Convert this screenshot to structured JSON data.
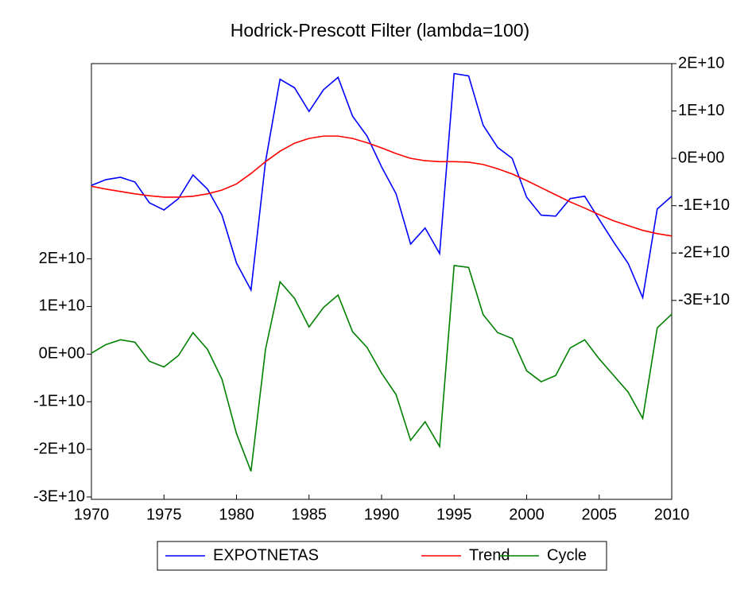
{
  "chart_data": {
    "type": "line",
    "title": "Hodrick-Prescott Filter (lambda=100)",
    "x": [
      1970,
      1971,
      1972,
      1973,
      1974,
      1975,
      1976,
      1977,
      1978,
      1979,
      1980,
      1981,
      1982,
      1983,
      1984,
      1985,
      1986,
      1987,
      1988,
      1989,
      1990,
      1991,
      1992,
      1993,
      1994,
      1995,
      1996,
      1997,
      1998,
      1999,
      2000,
      2001,
      2002,
      2003,
      2004,
      2005,
      2006,
      2007,
      2008,
      2009,
      2010
    ],
    "xlim": [
      1970,
      2010
    ],
    "xticks": [
      1970,
      1975,
      1980,
      1985,
      1990,
      1995,
      2000,
      2005,
      2010
    ],
    "ylim": [
      -30500000000,
      61000000000
    ],
    "yticks": [
      {
        "value": -30000000000,
        "label": "-3E+10"
      },
      {
        "value": -20000000000,
        "label": "-2E+10"
      },
      {
        "value": -10000000000,
        "label": "-1E+10"
      },
      {
        "value": 0,
        "label": "0E+00"
      },
      {
        "value": 10000000000,
        "label": "1E+10"
      },
      {
        "value": 20000000000,
        "label": "2E+10"
      }
    ],
    "y2lim": [
      -72000000000,
      20000000000
    ],
    "y2ticks": [
      {
        "value": -30000000000,
        "label": "-3E+10"
      },
      {
        "value": -20000000000,
        "label": "-2E+10"
      },
      {
        "value": -10000000000,
        "label": "-1E+10"
      },
      {
        "value": 0,
        "label": "0E+00"
      },
      {
        "value": 10000000000,
        "label": "1E+10"
      },
      {
        "value": 20000000000,
        "label": "2E+10"
      }
    ],
    "legend": "bottom",
    "series": [
      {
        "name": "EXPOTNETAS",
        "color": "#0000ff",
        "axis": "y2",
        "values": [
          -5700000000.0,
          -4500000000.0,
          -4000000000.0,
          -5000000000.0,
          -9400000000.0,
          -10900000000.0,
          -8500000000.0,
          -3500000000.0,
          -6500000000.0,
          -12000000000.0,
          -22100000000.0,
          -27800000000.0,
          -700000000.0,
          16700000000.0,
          14900000000.0,
          9900000000.0,
          14500000000.0,
          17100000000.0,
          8900000000.0,
          4700000000.0,
          -1800000000.0,
          -7500000000.0,
          -18100000000.0,
          -14700000000.0,
          -20100000000.0,
          17900000000.0,
          17400000000.0,
          7000000000.0,
          2300000000.0,
          0,
          -8200000000.0,
          -12000000000.0,
          -12200000000.0,
          -8500000000.0,
          -8000000000.0,
          -12900000000.0,
          -17700000000.0,
          -22200000000.0,
          -29400000000.0,
          -10700000000.0,
          -8000000000.0
        ]
      },
      {
        "name": "Trend",
        "color": "#ff0000",
        "axis": "y2",
        "values": [
          -5900000000.0,
          -6500000000.0,
          -7000000000.0,
          -7500000000.0,
          -7900000000.0,
          -8200000000.0,
          -8200000000.0,
          -8000000000.0,
          -7500000000.0,
          -6700000000.0,
          -5400000000.0,
          -3200000000.0,
          -700000000.0,
          1500000000.0,
          3200000000.0,
          4200000000.0,
          4700000000.0,
          4700000000.0,
          4200000000.0,
          3300000000.0,
          2200000000.0,
          1000000000.0,
          0,
          -500000000.0,
          -700000000.0,
          -700000000.0,
          -800000000.0,
          -1300000000.0,
          -2200000000.0,
          -3300000000.0,
          -4700000000.0,
          -6200000000.0,
          -7700000000.0,
          -9200000000.0,
          -10500000000.0,
          -11900000000.0,
          -13200000000.0,
          -14200000000.0,
          -15200000000.0,
          -15900000000.0,
          -16400000000.0
        ]
      },
      {
        "name": "Cycle",
        "color": "#008000",
        "axis": "y",
        "values": [
          200000000.0,
          2000000000.0,
          3000000000.0,
          2500000000.0,
          -1500000000.0,
          -2700000000.0,
          -300000000.0,
          4500000000.0,
          1000000000.0,
          -5300000000.0,
          -16700000000.0,
          -24600000000.0,
          1000000000.0,
          15200000000.0,
          11700000000.0,
          5700000000.0,
          9800000000.0,
          12400000000.0,
          4700000000.0,
          1400000000.0,
          -4000000000.0,
          -8500000000.0,
          -18100000000.0,
          -14200000000.0,
          -19400000000.0,
          18600000000.0,
          18200000000.0,
          8300000000.0,
          4500000000.0,
          3300000000.0,
          -3500000000.0,
          -5800000000.0,
          -4500000000.0,
          1300000000.0,
          3000000000.0,
          -1000000000.0,
          -4500000000.0,
          -8000000000.0,
          -13500000000.0,
          5500000000.0,
          8400000000.0
        ]
      }
    ]
  }
}
